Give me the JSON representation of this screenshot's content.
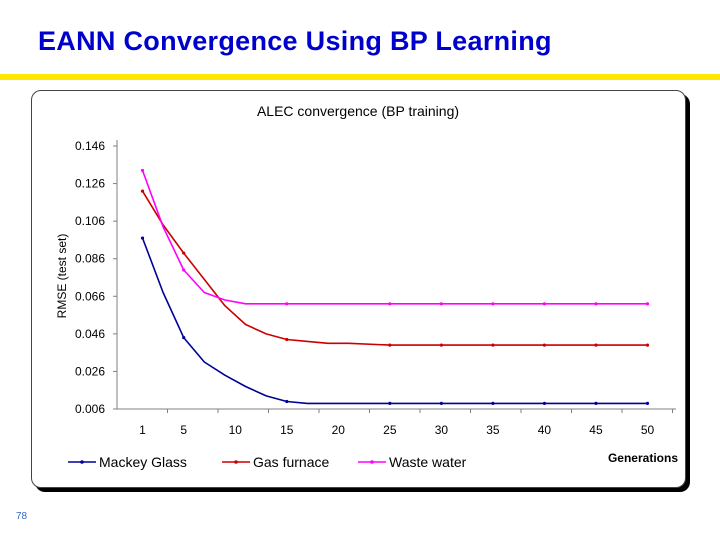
{
  "slide": {
    "title": "EANN Convergence Using BP Learning",
    "page_number": "78",
    "accent_color": "#ffe800",
    "title_color": "#0000cc"
  },
  "chart_data": {
    "type": "line",
    "title": "ALEC convergence (BP training)",
    "xlabel": "Generations",
    "ylabel": "RMSE (test set)",
    "x_ticks": [
      1,
      5,
      10,
      15,
      20,
      25,
      30,
      35,
      40,
      45,
      50
    ],
    "y_ticks": [
      "0.146",
      "0.126",
      "0.106",
      "0.086",
      "0.066",
      "0.046",
      "0.026",
      "0.006"
    ],
    "ylim": [
      0.006,
      0.146
    ],
    "xlim": [
      1,
      50
    ],
    "grid": false,
    "legend_position": "bottom",
    "series": [
      {
        "name": "Mackey Glass",
        "color": "#000099",
        "x": [
          1,
          3,
          5,
          7,
          9,
          11,
          13,
          15,
          17,
          19,
          21,
          25,
          30,
          35,
          40,
          45,
          50
        ],
        "y": [
          0.097,
          0.068,
          0.044,
          0.031,
          0.024,
          0.018,
          0.013,
          0.01,
          0.009,
          0.009,
          0.009,
          0.009,
          0.009,
          0.009,
          0.009,
          0.009,
          0.009
        ]
      },
      {
        "name": "Gas furnace",
        "color": "#cc0000",
        "x": [
          1,
          3,
          5,
          7,
          9,
          11,
          13,
          15,
          17,
          19,
          21,
          25,
          30,
          35,
          40,
          45,
          50
        ],
        "y": [
          0.122,
          0.104,
          0.089,
          0.075,
          0.061,
          0.051,
          0.046,
          0.043,
          0.042,
          0.041,
          0.041,
          0.04,
          0.04,
          0.04,
          0.04,
          0.04,
          0.04
        ]
      },
      {
        "name": "Waste water",
        "color": "#ff00ff",
        "x": [
          1,
          3,
          5,
          7,
          9,
          11,
          13,
          15,
          17,
          19,
          21,
          25,
          30,
          35,
          40,
          45,
          50
        ],
        "y": [
          0.133,
          0.103,
          0.08,
          0.068,
          0.064,
          0.062,
          0.062,
          0.062,
          0.062,
          0.062,
          0.062,
          0.062,
          0.062,
          0.062,
          0.062,
          0.062,
          0.062
        ]
      }
    ]
  }
}
